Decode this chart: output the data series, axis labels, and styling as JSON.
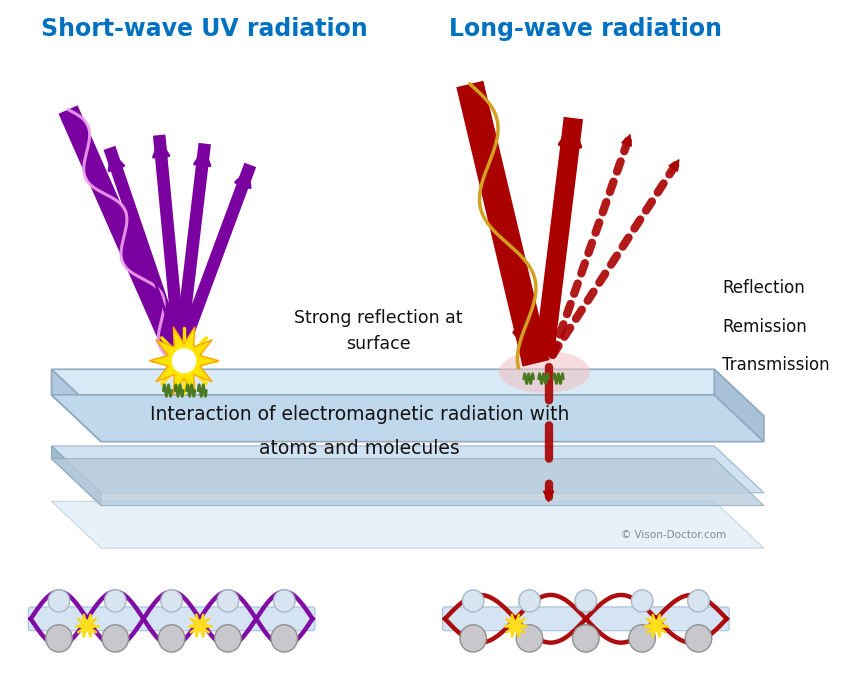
{
  "title_left": "Short-wave UV radiation",
  "title_right": "Long-wave radiation",
  "title_color": "#0070C0",
  "title_fontsize": 17,
  "bg_color": "#ffffff",
  "label_strong_reflection": "Strong reflection at\nsurface",
  "label_reflection": "Reflection",
  "label_remission": "Remission",
  "label_transmission": "Transmission",
  "label_interaction": "Interaction of electromagnetic radiation with\natoms and molecules",
  "copyright": "© Vison-Doctor.com",
  "uv_color": "#7B00A0",
  "ir_color": "#AA0000",
  "yellow_color": "#FFD700",
  "plate_top_color": "#D8E8F4",
  "plate_side_color": "#B8D0E8",
  "plate_bottom_color": "#C8D8EC"
}
